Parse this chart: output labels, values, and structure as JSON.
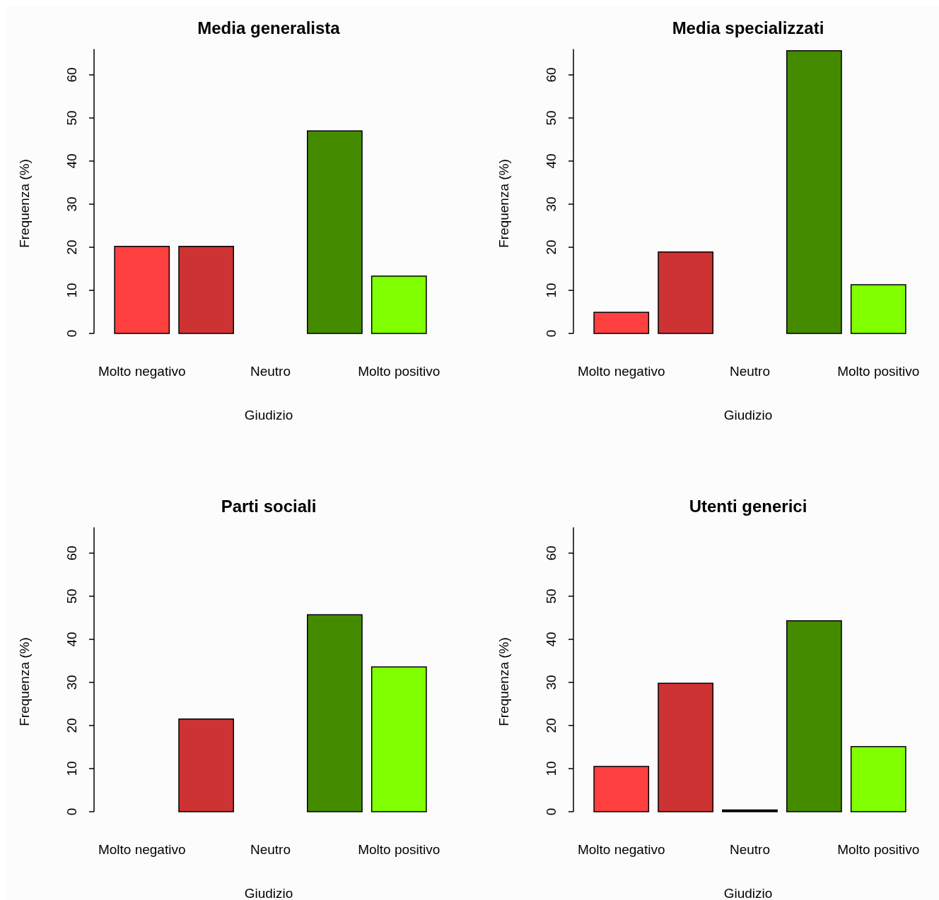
{
  "chart_data": [
    {
      "type": "bar",
      "title": "Media generalista",
      "xlabel": "Giudizio",
      "ylabel": "Frequenza (%)",
      "categories": [
        "Molto negativo",
        null,
        "Neutro",
        null,
        "Molto positivo"
      ],
      "values": [
        20.2,
        20.2,
        0,
        47,
        13.3
      ],
      "colors": [
        "#ff4040",
        "#cd3333",
        "#000000",
        "#458b00",
        "#7fff00"
      ],
      "ylim": [
        0,
        66
      ],
      "yticks": [
        0,
        10,
        20,
        30,
        40,
        50,
        60
      ]
    },
    {
      "type": "bar",
      "title": "Media specializzati",
      "xlabel": "Giudizio",
      "ylabel": "Frequenza (%)",
      "categories": [
        "Molto negativo",
        null,
        "Neutro",
        null,
        "Molto positivo"
      ],
      "values": [
        4.9,
        18.9,
        0,
        65.6,
        11.3
      ],
      "colors": [
        "#ff4040",
        "#cd3333",
        "#000000",
        "#458b00",
        "#7fff00"
      ],
      "ylim": [
        0,
        66
      ],
      "yticks": [
        0,
        10,
        20,
        30,
        40,
        50,
        60
      ]
    },
    {
      "type": "bar",
      "title": "Parti sociali",
      "xlabel": "Giudizio",
      "ylabel": "Frequenza (%)",
      "categories": [
        "Molto negativo",
        null,
        "Neutro",
        null,
        "Molto positivo"
      ],
      "values": [
        0,
        21.5,
        0,
        45.7,
        33.6
      ],
      "colors": [
        "#ff4040",
        "#cd3333",
        "#000000",
        "#458b00",
        "#7fff00"
      ],
      "ylim": [
        0,
        66
      ],
      "yticks": [
        0,
        10,
        20,
        30,
        40,
        50,
        60
      ]
    },
    {
      "type": "bar",
      "title": "Utenti generici",
      "xlabel": "Giudizio",
      "ylabel": "Frequenza (%)",
      "categories": [
        "Molto negativo",
        null,
        "Neutro",
        null,
        "Molto positivo"
      ],
      "values": [
        10.5,
        29.8,
        0.4,
        44.3,
        15.1
      ],
      "colors": [
        "#ff4040",
        "#cd3333",
        "#000000",
        "#458b00",
        "#7fff00"
      ],
      "ylim": [
        0,
        66
      ],
      "yticks": [
        0,
        10,
        20,
        30,
        40,
        50,
        60
      ]
    }
  ]
}
